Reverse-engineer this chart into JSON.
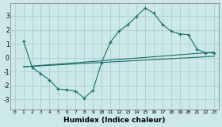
{
  "xlabel": "Humidex (Indice chaleur)",
  "bg_color": "#cce8e8",
  "grid_color": "#aacfcf",
  "line_color": "#1a7068",
  "xlim": [
    -0.5,
    23.5
  ],
  "ylim": [
    -3.7,
    3.9
  ],
  "yticks": [
    -3,
    -2,
    -1,
    0,
    1,
    2,
    3
  ],
  "xticks": [
    0,
    1,
    2,
    3,
    4,
    5,
    6,
    7,
    8,
    9,
    10,
    11,
    12,
    13,
    14,
    15,
    16,
    17,
    18,
    19,
    20,
    21,
    22,
    23
  ],
  "main_x": [
    1,
    2,
    3,
    4,
    5,
    6,
    7,
    8,
    9,
    10,
    11,
    12,
    13,
    14,
    15,
    16,
    17,
    18,
    19,
    20,
    21,
    22,
    23
  ],
  "main_y": [
    1.2,
    -0.7,
    -1.15,
    -1.6,
    -2.25,
    -2.3,
    -2.4,
    -2.9,
    -2.35,
    -0.35,
    1.1,
    1.9,
    2.35,
    2.95,
    3.55,
    3.2,
    2.4,
    1.9,
    1.7,
    1.65,
    0.6,
    0.35,
    0.35
  ],
  "line1_x": [
    1,
    23
  ],
  "line1_y": [
    -0.65,
    0.4
  ],
  "line2_x": [
    1,
    23
  ],
  "line2_y": [
    -0.65,
    0.1
  ]
}
